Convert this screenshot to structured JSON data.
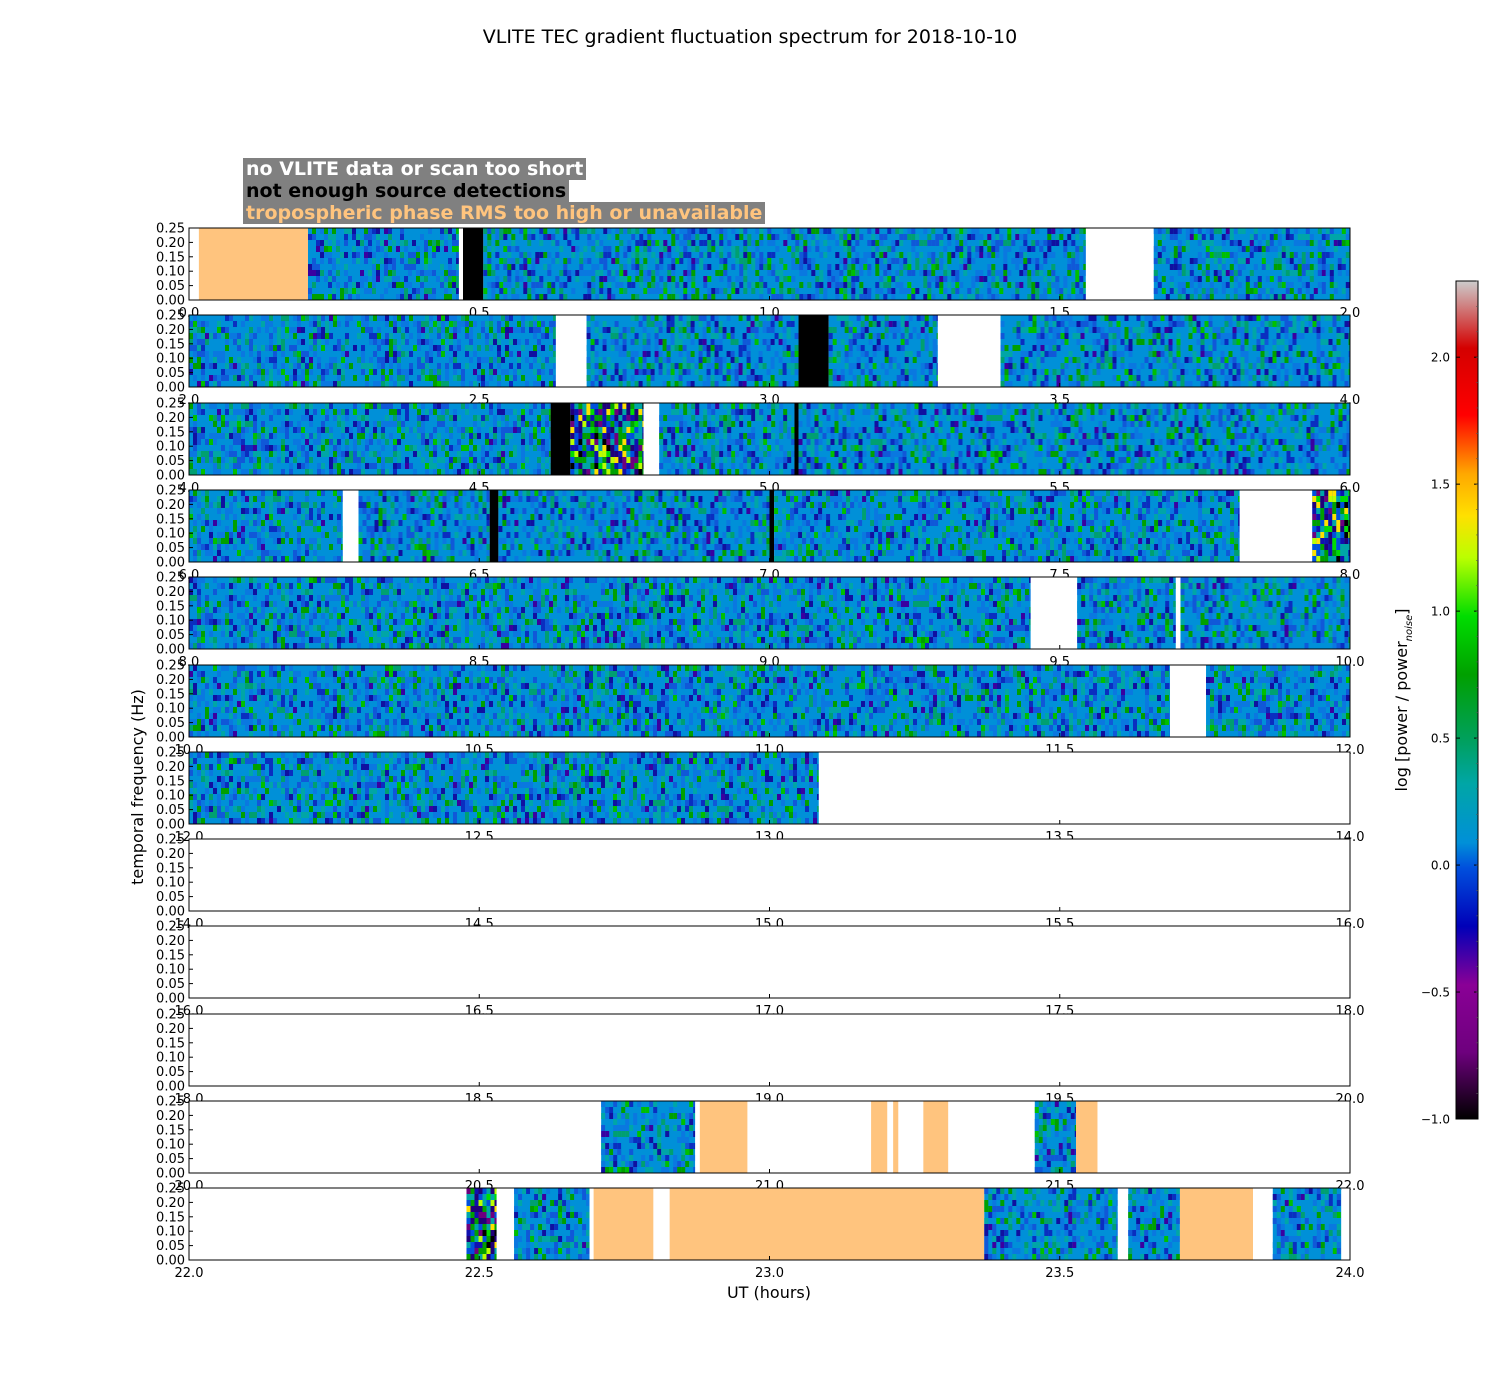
{
  "chart_data": {
    "type": "heatmap",
    "title": "VLITE TEC gradient fluctuation spectrum for 2018-10-10",
    "xlabel": "UT (hours)",
    "ylabel": "temporal frequency (Hz)",
    "ylim": [
      0,
      0.25
    ],
    "yticks": [
      "0.00",
      "0.05",
      "0.10",
      "0.15",
      "0.20",
      "0.25"
    ],
    "rows": [
      {
        "xlim": [
          0,
          2
        ],
        "xticks": [
          "0.0",
          "0.5",
          "1.0",
          "1.5",
          "2.0"
        ],
        "segments": [
          {
            "start": 0.0,
            "end": 0.017,
            "kind": "nodata"
          },
          {
            "start": 0.017,
            "end": 0.205,
            "kind": "tropo"
          },
          {
            "start": 0.205,
            "end": 0.465,
            "kind": "data"
          },
          {
            "start": 0.465,
            "end": 0.472,
            "kind": "nodata"
          },
          {
            "start": 0.472,
            "end": 0.507,
            "kind": "nodetect"
          },
          {
            "start": 0.507,
            "end": 1.545,
            "kind": "data"
          },
          {
            "start": 1.545,
            "end": 1.662,
            "kind": "nodata"
          },
          {
            "start": 1.662,
            "end": 2.0,
            "kind": "data"
          }
        ]
      },
      {
        "xlim": [
          2,
          4
        ],
        "xticks": [
          "2.0",
          "2.5",
          "3.0",
          "3.5",
          "4.0"
        ],
        "segments": [
          {
            "start": 2.0,
            "end": 2.632,
            "kind": "data"
          },
          {
            "start": 2.632,
            "end": 2.685,
            "kind": "nodata"
          },
          {
            "start": 2.685,
            "end": 3.05,
            "kind": "data"
          },
          {
            "start": 3.05,
            "end": 3.102,
            "kind": "nodetect"
          },
          {
            "start": 3.102,
            "end": 3.29,
            "kind": "data"
          },
          {
            "start": 3.29,
            "end": 3.398,
            "kind": "nodata"
          },
          {
            "start": 3.398,
            "end": 4.0,
            "kind": "data"
          }
        ]
      },
      {
        "xlim": [
          4,
          6
        ],
        "xticks": [
          "4.0",
          "4.5",
          "5.0",
          "5.5",
          "6.0"
        ],
        "segments": [
          {
            "start": 4.0,
            "end": 4.623,
            "kind": "data"
          },
          {
            "start": 4.623,
            "end": 4.657,
            "kind": "nodetect"
          },
          {
            "start": 4.657,
            "end": 4.783,
            "kind": "data"
          },
          {
            "start": 4.783,
            "end": 4.81,
            "kind": "nodata"
          },
          {
            "start": 4.81,
            "end": 5.043,
            "kind": "data"
          },
          {
            "start": 5.043,
            "end": 5.05,
            "kind": "nodetect"
          },
          {
            "start": 5.05,
            "end": 6.0,
            "kind": "data"
          }
        ]
      },
      {
        "xlim": [
          6,
          8
        ],
        "xticks": [
          "6.0",
          "6.5",
          "7.0",
          "7.5",
          "8.0"
        ],
        "segments": [
          {
            "start": 6.0,
            "end": 6.265,
            "kind": "data"
          },
          {
            "start": 6.265,
            "end": 6.292,
            "kind": "nodata"
          },
          {
            "start": 6.292,
            "end": 6.518,
            "kind": "data"
          },
          {
            "start": 6.518,
            "end": 6.533,
            "kind": "nodetect"
          },
          {
            "start": 6.533,
            "end": 7.0,
            "kind": "data"
          },
          {
            "start": 7.0,
            "end": 7.008,
            "kind": "nodetect"
          },
          {
            "start": 7.008,
            "end": 7.81,
            "kind": "data"
          },
          {
            "start": 7.81,
            "end": 7.935,
            "kind": "nodata"
          },
          {
            "start": 7.935,
            "end": 8.0,
            "kind": "data"
          }
        ]
      },
      {
        "xlim": [
          8,
          10
        ],
        "xticks": [
          "8.0",
          "8.5",
          "9.0",
          "9.5",
          "10.0"
        ],
        "segments": [
          {
            "start": 8.0,
            "end": 9.45,
            "kind": "data"
          },
          {
            "start": 9.45,
            "end": 9.53,
            "kind": "nodata"
          },
          {
            "start": 9.53,
            "end": 9.7,
            "kind": "data"
          },
          {
            "start": 9.7,
            "end": 9.708,
            "kind": "nodata"
          },
          {
            "start": 9.708,
            "end": 10.0,
            "kind": "data"
          }
        ]
      },
      {
        "xlim": [
          10,
          12
        ],
        "xticks": [
          "10.0",
          "10.5",
          "11.0",
          "11.5",
          "12.0"
        ],
        "segments": [
          {
            "start": 10.0,
            "end": 11.69,
            "kind": "data"
          },
          {
            "start": 11.69,
            "end": 11.752,
            "kind": "nodata"
          },
          {
            "start": 11.752,
            "end": 12.0,
            "kind": "data"
          }
        ]
      },
      {
        "xlim": [
          12,
          14
        ],
        "xticks": [
          "12.0",
          "12.5",
          "13.0",
          "13.5",
          "14.0"
        ],
        "segments": [
          {
            "start": 12.0,
            "end": 13.085,
            "kind": "data"
          },
          {
            "start": 13.085,
            "end": 14.0,
            "kind": "nodata"
          }
        ]
      },
      {
        "xlim": [
          14,
          16
        ],
        "xticks": [
          "14.0",
          "14.5",
          "15.0",
          "15.5",
          "16.0"
        ],
        "segments": [
          {
            "start": 14.0,
            "end": 16.0,
            "kind": "nodata"
          }
        ]
      },
      {
        "xlim": [
          16,
          18
        ],
        "xticks": [
          "16.0",
          "16.5",
          "17.0",
          "17.5",
          "18.0"
        ],
        "segments": [
          {
            "start": 16.0,
            "end": 18.0,
            "kind": "nodata"
          }
        ]
      },
      {
        "xlim": [
          18,
          20
        ],
        "xticks": [
          "18.0",
          "18.5",
          "19.0",
          "19.5",
          "20.0"
        ],
        "segments": [
          {
            "start": 18.0,
            "end": 20.0,
            "kind": "nodata"
          }
        ]
      },
      {
        "xlim": [
          20,
          22
        ],
        "xticks": [
          "20.0",
          "20.5",
          "21.0",
          "21.5",
          "22.0"
        ],
        "segments": [
          {
            "start": 20.0,
            "end": 20.71,
            "kind": "nodata"
          },
          {
            "start": 20.71,
            "end": 20.872,
            "kind": "data"
          },
          {
            "start": 20.872,
            "end": 20.88,
            "kind": "nodata"
          },
          {
            "start": 20.88,
            "end": 20.962,
            "kind": "tropo"
          },
          {
            "start": 20.962,
            "end": 21.175,
            "kind": "nodata"
          },
          {
            "start": 21.175,
            "end": 21.203,
            "kind": "tropo"
          },
          {
            "start": 21.203,
            "end": 21.213,
            "kind": "nodata"
          },
          {
            "start": 21.213,
            "end": 21.222,
            "kind": "tropo"
          },
          {
            "start": 21.222,
            "end": 21.265,
            "kind": "nodata"
          },
          {
            "start": 21.265,
            "end": 21.308,
            "kind": "tropo"
          },
          {
            "start": 21.308,
            "end": 21.457,
            "kind": "nodata"
          },
          {
            "start": 21.457,
            "end": 21.528,
            "kind": "data"
          },
          {
            "start": 21.528,
            "end": 21.565,
            "kind": "tropo"
          },
          {
            "start": 21.565,
            "end": 22.0,
            "kind": "nodata"
          }
        ]
      },
      {
        "xlim": [
          22,
          24
        ],
        "xticks": [
          "22.0",
          "22.5",
          "23.0",
          "23.5",
          "24.0"
        ],
        "segments": [
          {
            "start": 22.0,
            "end": 22.478,
            "kind": "nodata"
          },
          {
            "start": 22.478,
            "end": 22.53,
            "kind": "data"
          },
          {
            "start": 22.53,
            "end": 22.56,
            "kind": "nodata"
          },
          {
            "start": 22.56,
            "end": 22.69,
            "kind": "data"
          },
          {
            "start": 22.69,
            "end": 22.697,
            "kind": "nodata"
          },
          {
            "start": 22.697,
            "end": 22.8,
            "kind": "tropo"
          },
          {
            "start": 22.8,
            "end": 22.828,
            "kind": "nodata"
          },
          {
            "start": 22.828,
            "end": 23.37,
            "kind": "tropo"
          },
          {
            "start": 23.37,
            "end": 23.6,
            "kind": "data"
          },
          {
            "start": 23.6,
            "end": 23.618,
            "kind": "nodata"
          },
          {
            "start": 23.618,
            "end": 23.707,
            "kind": "data"
          },
          {
            "start": 23.707,
            "end": 23.833,
            "kind": "tropo"
          },
          {
            "start": 23.833,
            "end": 23.867,
            "kind": "nodata"
          },
          {
            "start": 23.867,
            "end": 23.985,
            "kind": "data"
          },
          {
            "start": 23.985,
            "end": 24.0,
            "kind": "nodata"
          }
        ]
      }
    ],
    "colorbar": {
      "label": "log [power / power",
      "label_subscript": "noise",
      "label_close": "]",
      "range": [
        -1.0,
        2.3
      ],
      "ticks": [
        "−1.0",
        "−0.5",
        "0.0",
        "0.5",
        "1.0",
        "1.5",
        "2.0"
      ],
      "tick_values": [
        -1.0,
        -0.5,
        0.0,
        0.5,
        1.0,
        1.5,
        2.0
      ],
      "colormap": "spectral"
    },
    "legend": [
      {
        "text": "no VLITE data or scan too short",
        "color": "#ffffff"
      },
      {
        "text": "not enough source detections",
        "color": "#000000"
      },
      {
        "text": "tropospheric phase RMS too high or unavailable",
        "color": "#ffc47e"
      }
    ],
    "colors": {
      "tropo": "#ffc47e",
      "nodetect": "#000000",
      "nodata": "#ffffff",
      "base": "#0090d8"
    }
  }
}
